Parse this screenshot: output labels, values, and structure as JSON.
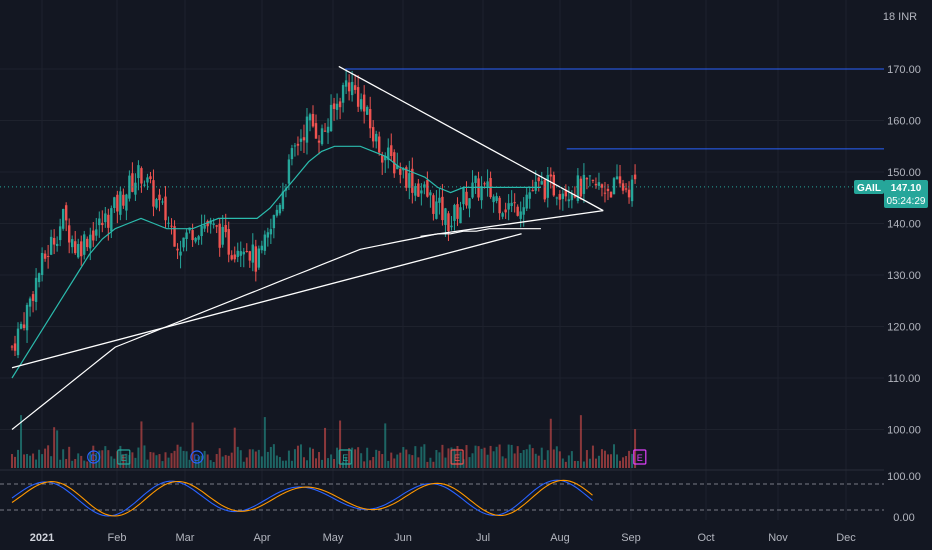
{
  "chart_data": {
    "type": "candlestick",
    "symbol": "GAIL",
    "currency_label": "18 INR",
    "last_price": "147.10",
    "countdown": "05:24:29",
    "price_ticks": [
      "170.00",
      "160.00",
      "150.00",
      "140.00",
      "130.00",
      "120.00",
      "110.00",
      "100.00"
    ],
    "osc_ticks": [
      "100.00",
      "0.00"
    ],
    "month_labels": [
      "2021",
      "Feb",
      "Mar",
      "Apr",
      "May",
      "Jun",
      "Jul",
      "Aug",
      "Sep",
      "Oct",
      "Nov",
      "Dec"
    ],
    "ylim": [
      90,
      180
    ],
    "series": [
      {
        "name": "close",
        "x_days": [
          0,
          6,
          12,
          18,
          24,
          30,
          36,
          42,
          48,
          54,
          60,
          66,
          72,
          78,
          84,
          90,
          96,
          102,
          108,
          114,
          120,
          126,
          132,
          138,
          144,
          150,
          156,
          162,
          168,
          174,
          180,
          186,
          192,
          198,
          204,
          210,
          216,
          222,
          228,
          234,
          240,
          246
        ],
        "values": [
          116,
          122,
          130,
          136,
          141,
          135,
          138,
          140,
          143,
          147,
          150,
          145,
          141,
          136,
          139,
          140,
          138,
          135,
          137,
          132,
          138,
          147,
          155,
          160,
          157,
          162,
          168,
          164,
          157,
          153,
          151,
          148,
          146,
          143,
          140,
          145,
          147,
          146,
          144,
          143,
          146,
          147
        ]
      },
      {
        "name": "MA50",
        "values": [
          110,
          114,
          118,
          122,
          126,
          130,
          134,
          137,
          139,
          140,
          141,
          140,
          139,
          139,
          139,
          140,
          141,
          141,
          141,
          141,
          143,
          146,
          149,
          152,
          154,
          155,
          155,
          155,
          154,
          153,
          151,
          150,
          149,
          147,
          146,
          147,
          147,
          147,
          147,
          147,
          147,
          147
        ]
      },
      {
        "name": "MA200",
        "values": [
          100,
          102,
          104,
          106,
          108,
          110,
          112,
          114,
          116,
          117,
          118,
          119,
          120,
          121,
          122,
          123,
          124,
          125,
          126,
          127,
          128,
          129,
          130,
          131,
          132,
          133,
          134,
          135,
          135.5,
          136,
          136.5,
          137,
          137.5,
          138,
          138,
          138.5,
          138.5,
          139,
          139,
          139,
          139,
          139
        ]
      }
    ],
    "trendlines": [
      {
        "from": [
          0,
          112
        ],
        "to": [
          237,
          138
        ]
      },
      {
        "from": [
          152,
          170.5
        ],
        "to": [
          275,
          142.5
        ]
      },
      {
        "from": [
          190,
          137.5
        ],
        "to": [
          275,
          142.5
        ]
      }
    ],
    "horizontal_levels": [
      170,
      154.5
    ],
    "dotted_level": 147.1,
    "event_markers": [
      {
        "label": "D",
        "day": 38,
        "color": "#2962ff"
      },
      {
        "label": "E",
        "day": 52,
        "color": "#26a69a"
      },
      {
        "label": "D",
        "day": 86,
        "color": "#2962ff"
      },
      {
        "label": "E",
        "day": 155,
        "color": "#26a69a"
      },
      {
        "label": "E",
        "day": 207,
        "color": "#ef5350"
      },
      {
        "label": "E",
        "day": 292,
        "color": "#e040fb"
      }
    ]
  },
  "colors": {
    "background": "#131722",
    "grid": "#1e222d",
    "up": "#26a69a",
    "down": "#ef5350",
    "ma50": "#2bbbad",
    "ma200": "#ffffff",
    "level": "#2962ff",
    "osc_k": "#2962ff",
    "osc_d": "#ff9800"
  }
}
